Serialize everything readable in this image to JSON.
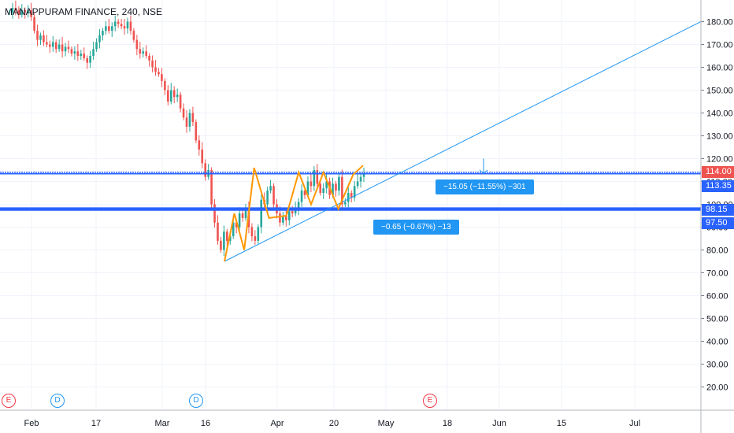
{
  "chart_data": {
    "type": "candlestick",
    "title": "MANAPPURAM FINANCE, 240, NSE",
    "y_ticks": [
      20,
      30,
      40,
      50,
      60,
      70,
      80,
      90,
      100,
      110,
      120,
      130,
      140,
      150,
      160,
      170,
      180
    ],
    "y_tick_labels": [
      "20.00",
      "30.00",
      "40.00",
      "50.00",
      "60.00",
      "70.00",
      "80.00",
      "90.00",
      "100.00",
      "110.00",
      "120.00",
      "130.00",
      "140.00",
      "150.00",
      "160.00",
      "170.00",
      "180.00"
    ],
    "x_ticks": [
      "Feb",
      "17",
      "Mar",
      "16",
      "Apr",
      "20",
      "May",
      "18",
      "Jun",
      "15",
      "Jul"
    ],
    "price_tags": [
      {
        "value": "114.00",
        "color": "#ef5350"
      },
      {
        "value": "113.35",
        "color": "#2962ff"
      },
      {
        "value": "98.15",
        "color": "#2962ff"
      },
      {
        "value": "97.50",
        "color": "#2962ff"
      }
    ],
    "ohlc_closes": [
      184,
      186,
      185,
      183,
      185,
      184,
      185,
      182,
      176,
      172,
      174,
      171,
      170,
      169,
      171,
      168,
      170,
      167,
      169,
      168,
      166,
      167,
      165,
      166,
      164,
      162,
      165,
      168,
      171,
      174,
      176,
      178,
      176,
      178,
      180,
      179,
      178,
      177,
      180,
      176,
      172,
      168,
      166,
      167,
      165,
      163,
      160,
      158,
      157,
      154,
      150,
      145,
      150,
      147,
      148,
      142,
      138,
      134,
      140,
      136,
      128,
      124,
      118,
      112,
      115,
      100,
      92,
      84,
      80,
      88,
      84,
      86,
      92,
      90,
      96,
      94,
      98,
      90,
      86,
      84,
      90,
      102,
      100,
      106,
      108,
      100,
      96,
      92,
      95,
      93,
      97,
      96,
      98,
      101,
      106,
      104,
      110,
      108,
      115,
      109,
      105,
      107,
      110,
      104,
      109,
      106,
      112,
      100,
      101,
      105,
      103,
      108,
      110,
      112,
      113.35
    ],
    "pattern_zigzag": [
      [
        0,
        75
      ],
      [
        4,
        96
      ],
      [
        8,
        80
      ],
      [
        12,
        116
      ],
      [
        18,
        94
      ],
      [
        25,
        95
      ],
      [
        30,
        114
      ],
      [
        35,
        100
      ],
      [
        40,
        114
      ],
      [
        46,
        98
      ],
      [
        52,
        113
      ],
      [
        56,
        117
      ]
    ],
    "trendline": {
      "from": [
        0,
        75
      ],
      "to": [
        160,
        180
      ]
    },
    "support_levels": [
      114.0,
      113.35,
      98.15,
      97.5
    ],
    "annotations": [
      {
        "text": "−15.05 (−11.55%) −301"
      },
      {
        "text": "−0.65 (−0.67%) −13"
      }
    ],
    "event_markers": [
      {
        "label": "E",
        "color": "#f23645"
      },
      {
        "label": "D",
        "color": "#2196f3"
      },
      {
        "label": "D",
        "color": "#2196f3"
      },
      {
        "label": "E",
        "color": "#f23645"
      }
    ],
    "colors": {
      "up": "#26a69a",
      "down": "#ef5350",
      "line": "#2196f3",
      "pattern": "#ff9800"
    }
  }
}
